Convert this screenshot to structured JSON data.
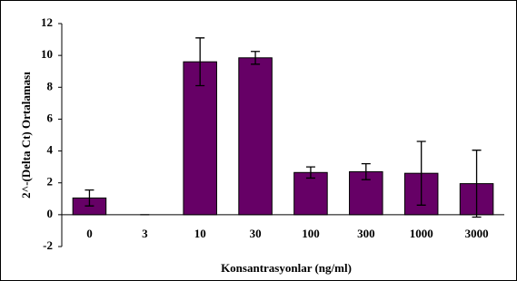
{
  "chart_data": {
    "type": "bar",
    "xlabel": "Konsantrasyonlar (ng/ml)",
    "ylabel": "2^-(Delta Ct) Ortalaması",
    "categories": [
      "0",
      "3",
      "10",
      "30",
      "100",
      "300",
      "1000",
      "3000"
    ],
    "values": [
      1.05,
      0,
      9.6,
      9.85,
      2.65,
      2.7,
      2.6,
      1.95
    ],
    "errors": [
      0.5,
      0,
      1.5,
      0.4,
      0.35,
      0.5,
      2.0,
      2.1
    ],
    "color": "#660066",
    "ylim": [
      -2,
      12
    ],
    "yticks": [
      -2,
      0,
      2,
      4,
      6,
      8,
      10,
      12
    ],
    "grid": false
  }
}
